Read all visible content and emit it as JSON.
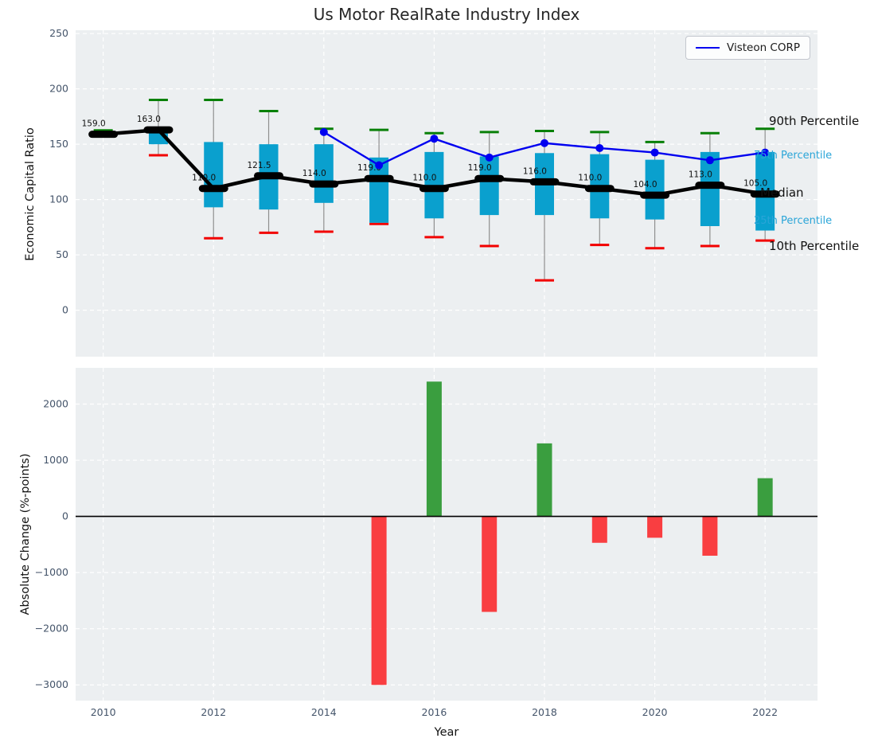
{
  "title": "Us Motor RealRate Industry Index",
  "legend": {
    "label": "Visteon CORP"
  },
  "colors": {
    "box_fill": "#0aa0ce",
    "whisker": "#8f8f8f",
    "cap_high": "#088008",
    "cap_low": "#f20000",
    "median_line": "#000000",
    "company_line": "#0000f0",
    "bar_positive": "#3a9e3f",
    "bar_negative": "#f93e41",
    "axes_background": "#eceff1",
    "grid": "#ffffff",
    "tick_label": "#44546a",
    "zero_line": "#000000",
    "annotation_black": "#111111",
    "annotation_cyan": "#2aa5d8"
  },
  "chart_data": [
    {
      "type": "boxplot",
      "title": "Us Motor RealRate Industry Index",
      "ylabel": "Economic Capital Ratio",
      "ylim": [
        -42,
        253
      ],
      "yticks": [
        0,
        50,
        100,
        150,
        200,
        250
      ],
      "xlim": [
        2009.5,
        2022.95
      ],
      "xticks": [
        2010,
        2012,
        2014,
        2016,
        2018,
        2020,
        2022
      ],
      "grid": true,
      "legend_position": "upper right",
      "years": [
        2010,
        2011,
        2012,
        2013,
        2014,
        2015,
        2016,
        2017,
        2018,
        2019,
        2020,
        2021,
        2022
      ],
      "p90": [
        162.5,
        190,
        190,
        180,
        164,
        163,
        160,
        161,
        162,
        161,
        152,
        160,
        164
      ],
      "p75": [
        160,
        164,
        152,
        150,
        150,
        138,
        143,
        139,
        142,
        141,
        136,
        143,
        143
      ],
      "median": [
        159,
        163,
        110,
        121.5,
        114,
        119,
        110,
        119,
        116,
        110,
        104,
        113,
        105
      ],
      "p25": [
        158,
        150,
        93,
        91,
        97,
        79,
        83,
        86,
        86,
        83,
        82,
        76,
        72
      ],
      "p10": [
        157,
        140,
        65,
        70,
        71,
        78,
        66,
        58,
        27,
        59,
        56,
        58,
        63
      ],
      "median_labels": [
        "159.0",
        "163.0",
        "110.0",
        "121.5",
        "114.0",
        "119.0",
        "110.0",
        "119.0",
        "116.0",
        "110.0",
        "104.0",
        "113.0",
        "105.0"
      ],
      "series": [
        {
          "name": "Visteon CORP",
          "x": [
            2014,
            2015,
            2016,
            2017,
            2018,
            2019,
            2020,
            2021,
            2022
          ],
          "y": [
            161,
            131,
            155,
            138,
            151,
            146.5,
            142.5,
            135.5,
            142.5
          ]
        }
      ],
      "annotations": [
        {
          "text": "90th Percentile",
          "value": 170.5,
          "style": "black"
        },
        {
          "text": "75th Percentile",
          "value": 139,
          "style": "cyan"
        },
        {
          "text": "Median",
          "value": 105.5,
          "style": "black"
        },
        {
          "text": "25th Percentile",
          "value": 80,
          "style": "cyan"
        },
        {
          "text": "10th Percentile",
          "value": 57,
          "style": "black"
        }
      ]
    },
    {
      "type": "bar",
      "ylabel": "Absolute Change (%-points)",
      "xlabel": "Year",
      "ylim": [
        -3280,
        2645
      ],
      "yticks": [
        2000,
        1000,
        0,
        -1000,
        -2000,
        -3000
      ],
      "xlim": [
        2009.5,
        2022.95
      ],
      "xticks": [
        2010,
        2012,
        2014,
        2016,
        2018,
        2020,
        2022
      ],
      "grid": true,
      "x": [
        2015,
        2016,
        2017,
        2018,
        2019,
        2020,
        2021,
        2022
      ],
      "values": [
        -3000,
        2400,
        -1700,
        1300,
        -470,
        -380,
        -700,
        680
      ]
    }
  ]
}
